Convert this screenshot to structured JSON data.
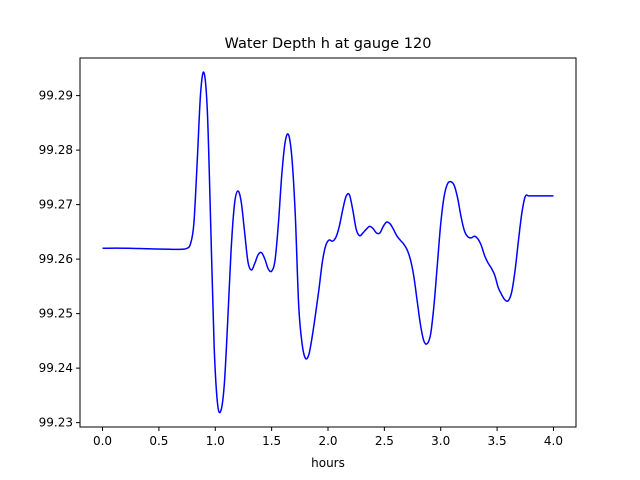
{
  "chart_data": {
    "type": "line",
    "title": "Water Depth h at gauge 120",
    "xlabel": "hours",
    "ylabel": "",
    "xlim": [
      -0.2,
      4.2
    ],
    "ylim": [
      99.2292,
      99.2969
    ],
    "xticks": [
      0.0,
      0.5,
      1.0,
      1.5,
      2.0,
      2.5,
      3.0,
      3.5,
      4.0
    ],
    "xtick_labels": [
      "0.0",
      "0.5",
      "1.0",
      "1.5",
      "2.0",
      "2.5",
      "3.0",
      "3.5",
      "4.0"
    ],
    "yticks": [
      99.23,
      99.24,
      99.25,
      99.26,
      99.27,
      99.28,
      99.29
    ],
    "ytick_labels": [
      "99.23",
      "99.24",
      "99.25",
      "99.26",
      "99.27",
      "99.28",
      "99.29"
    ],
    "grid": false,
    "series": [
      {
        "color": "#0000ff",
        "x": [
          0.0,
          0.2,
          0.4,
          0.6,
          0.7,
          0.75,
          0.78,
          0.81,
          0.84,
          0.87,
          0.9,
          0.93,
          0.96,
          0.99,
          1.02,
          1.05,
          1.08,
          1.11,
          1.14,
          1.17,
          1.2,
          1.23,
          1.26,
          1.29,
          1.32,
          1.35,
          1.38,
          1.41,
          1.44,
          1.47,
          1.5,
          1.53,
          1.56,
          1.59,
          1.62,
          1.65,
          1.68,
          1.71,
          1.74,
          1.77,
          1.8,
          1.83,
          1.86,
          1.89,
          1.92,
          1.95,
          1.98,
          2.01,
          2.04,
          2.07,
          2.1,
          2.13,
          2.16,
          2.19,
          2.22,
          2.25,
          2.28,
          2.31,
          2.34,
          2.37,
          2.4,
          2.43,
          2.46,
          2.49,
          2.52,
          2.55,
          2.58,
          2.61,
          2.64,
          2.67,
          2.7,
          2.73,
          2.76,
          2.79,
          2.82,
          2.85,
          2.88,
          2.91,
          2.94,
          2.97,
          3.0,
          3.03,
          3.06,
          3.09,
          3.12,
          3.15,
          3.18,
          3.21,
          3.24,
          3.27,
          3.3,
          3.33,
          3.36,
          3.39,
          3.42,
          3.45,
          3.48,
          3.51,
          3.54,
          3.57,
          3.6,
          3.63,
          3.66,
          3.69,
          3.72,
          3.75,
          3.78,
          3.81,
          3.84,
          3.87,
          3.9,
          3.93,
          3.96,
          3.99,
          4.0
        ],
        "y": [
          99.262,
          99.262,
          99.2619,
          99.2618,
          99.2618,
          99.262,
          99.2628,
          99.2665,
          99.278,
          99.2905,
          99.2942,
          99.287,
          99.266,
          99.244,
          99.2335,
          99.2322,
          99.237,
          99.2485,
          99.2615,
          99.27,
          99.2725,
          99.2705,
          99.265,
          99.2595,
          99.258,
          99.2592,
          99.2608,
          99.2612,
          99.26,
          99.2582,
          99.2578,
          99.2598,
          99.2665,
          99.2755,
          99.2815,
          99.2828,
          99.2785,
          99.268,
          99.2515,
          99.2445,
          99.2418,
          99.2425,
          99.2458,
          99.25,
          99.2545,
          99.2595,
          99.2625,
          99.2635,
          99.2633,
          99.264,
          99.266,
          99.269,
          99.2715,
          99.2718,
          99.269,
          99.2655,
          99.2643,
          99.2648,
          99.2655,
          99.266,
          99.2656,
          99.2648,
          99.2648,
          99.266,
          99.2668,
          99.2665,
          99.2655,
          99.2643,
          99.2635,
          99.2628,
          99.2618,
          99.26,
          99.257,
          99.2525,
          99.248,
          99.245,
          99.2445,
          99.2462,
          99.2515,
          99.259,
          99.2665,
          99.2715,
          99.2738,
          99.2742,
          99.2735,
          99.2712,
          99.2678,
          99.2652,
          99.2641,
          99.2639,
          99.2642,
          99.2637,
          99.2625,
          99.2606,
          99.2593,
          99.2583,
          99.257,
          99.2548,
          99.2535,
          99.2525,
          99.2524,
          99.254,
          99.258,
          99.2635,
          99.2685,
          99.2715,
          99.2716,
          99.2716,
          99.2716,
          99.2716,
          99.2716,
          99.2716,
          99.2716,
          99.2716,
          99.2716
        ]
      }
    ]
  }
}
